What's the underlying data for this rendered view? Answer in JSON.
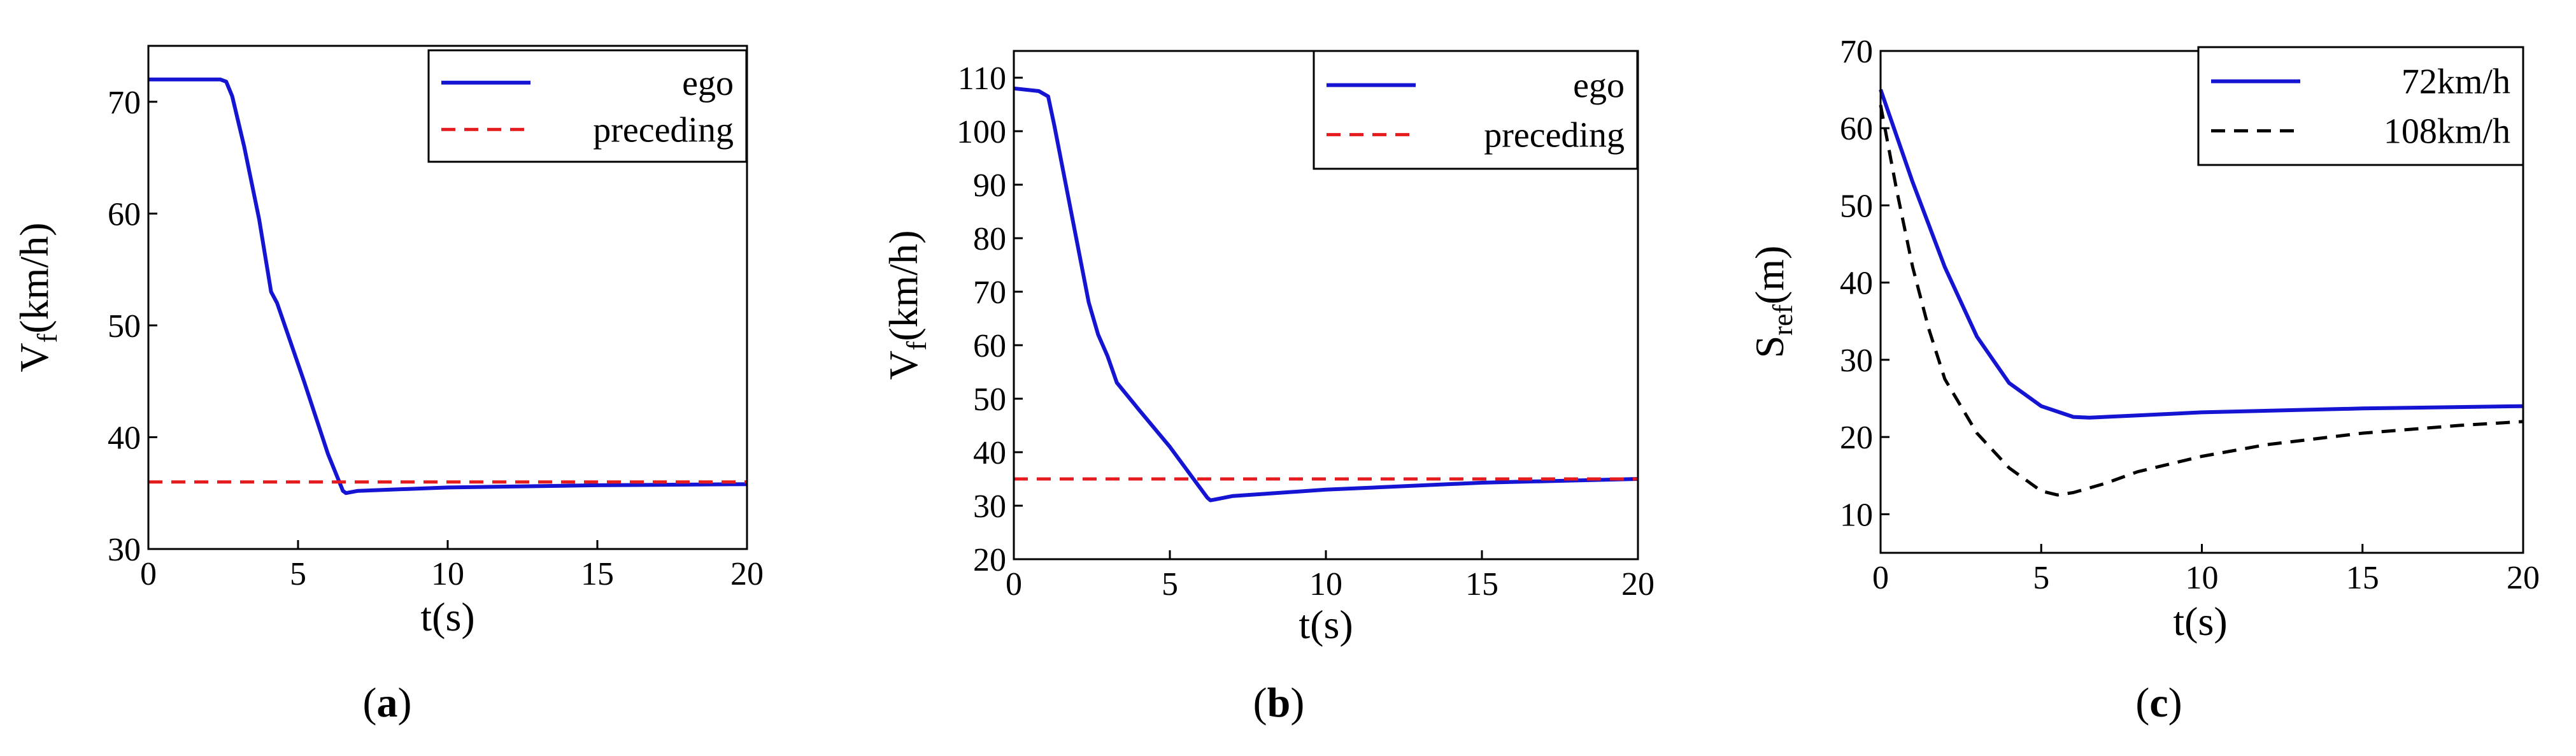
{
  "chart_data": [
    {
      "type": "line",
      "panel_label": "(a)",
      "panel_paren_open": "(",
      "panel_letter": "a",
      "panel_paren_close": ")",
      "xlabel": "t(s)",
      "ylabel_main": "V",
      "ylabel_sub": "f",
      "ylabel_rest": "(km/h)",
      "xlim": [
        0,
        20
      ],
      "ylim": [
        30,
        75
      ],
      "xticks": [
        0,
        5,
        10,
        15,
        20
      ],
      "yticks": [
        30,
        40,
        50,
        60,
        70
      ],
      "legend_position": "top-right",
      "series": [
        {
          "name": "ego",
          "color": "#1414d2",
          "style": "solid",
          "x": [
            0,
            2.4,
            2.6,
            2.8,
            3.2,
            3.7,
            4.1,
            4.3,
            5.2,
            6.0,
            6.5,
            6.6,
            7.0,
            10,
            15,
            20
          ],
          "y": [
            72,
            72,
            71.8,
            70.5,
            66,
            59.5,
            53,
            52,
            45,
            38.5,
            35.2,
            35,
            35.2,
            35.5,
            35.7,
            35.8
          ]
        },
        {
          "name": "preceding",
          "color": "#e41a1c",
          "style": "dashed",
          "x": [
            0,
            20
          ],
          "y": [
            36,
            36
          ]
        }
      ]
    },
    {
      "type": "line",
      "panel_label": "(b)",
      "panel_paren_open": "(",
      "panel_letter": "b",
      "panel_paren_close": ")",
      "xlabel": "t(s)",
      "ylabel_main": "V",
      "ylabel_sub": "f",
      "ylabel_rest": "(km/h)",
      "xlim": [
        0,
        20
      ],
      "ylim": [
        20,
        115
      ],
      "xticks": [
        0,
        5,
        10,
        15,
        20
      ],
      "yticks": [
        20,
        30,
        40,
        50,
        60,
        70,
        80,
        90,
        100,
        110
      ],
      "legend_position": "top-right",
      "series": [
        {
          "name": "ego",
          "color": "#1414d2",
          "style": "solid",
          "x": [
            0,
            0.8,
            1.1,
            1.3,
            1.6,
            2.0,
            2.4,
            2.7,
            3.0,
            3.3,
            4.0,
            5.0,
            6.2,
            6.3,
            7.0,
            10,
            15,
            20
          ],
          "y": [
            108,
            107.5,
            106.5,
            101,
            92,
            80,
            68,
            62,
            58,
            53,
            48,
            41,
            31.5,
            31,
            31.8,
            33,
            34.3,
            35
          ]
        },
        {
          "name": "preceding",
          "color": "#e41a1c",
          "style": "dashed",
          "x": [
            0,
            20
          ],
          "y": [
            35,
            35
          ]
        }
      ]
    },
    {
      "type": "line",
      "panel_label": "(c)",
      "panel_paren_open": "(",
      "panel_letter": "c",
      "panel_paren_close": ")",
      "xlabel": "t(s)",
      "ylabel_main": "S",
      "ylabel_sub": "ref",
      "ylabel_rest": "(m)",
      "xlim": [
        0,
        20
      ],
      "ylim": [
        5,
        70
      ],
      "xticks": [
        0,
        5,
        10,
        15,
        20
      ],
      "yticks": [
        10,
        20,
        30,
        40,
        50,
        60,
        70
      ],
      "legend_position": "top-right",
      "series": [
        {
          "name": "72km/h",
          "color": "#1414d2",
          "style": "solid",
          "x": [
            0,
            0.5,
            1,
            2,
            3,
            4,
            5,
            6,
            6.5,
            8,
            10,
            15,
            20
          ],
          "y": [
            65,
            59,
            53,
            42,
            33,
            27,
            24,
            22.6,
            22.5,
            22.8,
            23.2,
            23.7,
            24
          ]
        },
        {
          "name": "108km/h",
          "color": "#000000",
          "style": "dashed",
          "x": [
            0,
            0.5,
            1,
            1.5,
            2,
            3,
            4,
            5,
            5.5,
            6,
            7,
            8,
            10,
            12,
            15,
            18,
            20
          ],
          "y": [
            63,
            52,
            42,
            34,
            27.5,
            20.5,
            16,
            13,
            12.5,
            12.8,
            14,
            15.5,
            17.5,
            19,
            20.5,
            21.5,
            22
          ]
        }
      ]
    }
  ]
}
